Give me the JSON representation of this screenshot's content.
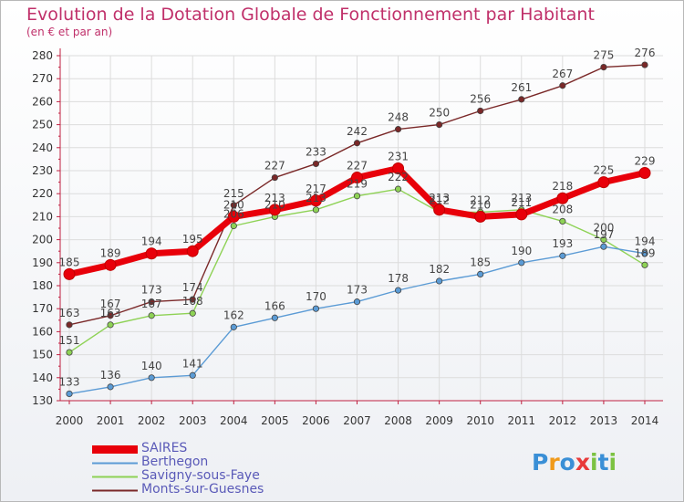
{
  "header": {
    "title": "Evolution de la Dotation Globale de Fonctionnement par Habitant",
    "subtitle": "(en € et par an)"
  },
  "brand": {
    "letters": [
      "P",
      "r",
      "o",
      "x",
      "i",
      "t",
      "i"
    ]
  },
  "chart_data": {
    "type": "line",
    "x": [
      "2000",
      "2001",
      "2002",
      "2003",
      "2004",
      "2005",
      "2006",
      "2007",
      "2008",
      "2009",
      "2010",
      "2011",
      "2012",
      "2013",
      "2014"
    ],
    "ylim": [
      130,
      280
    ],
    "yticks": [
      130,
      140,
      150,
      160,
      170,
      180,
      190,
      200,
      210,
      220,
      230,
      240,
      250,
      260,
      270,
      280
    ],
    "grid": true,
    "legend_position": "bottom-left",
    "series": [
      {
        "name": "SAIRES",
        "color": "#e8000a",
        "values": [
          185,
          189,
          194,
          195,
          210,
          213,
          217,
          227,
          231,
          213,
          210,
          211,
          218,
          225,
          229
        ],
        "labels": [
          "185",
          "189",
          "194",
          "195",
          "210",
          "213",
          "217",
          "227",
          "231",
          "213",
          "210",
          "211",
          "218",
          "225",
          "229"
        ]
      },
      {
        "name": "Berthegon",
        "color": "#5b9bd5",
        "values": [
          133,
          136,
          140,
          141,
          162,
          166,
          170,
          173,
          178,
          182,
          185,
          190,
          193,
          197,
          194
        ],
        "labels": [
          "133",
          "136",
          "140",
          "141",
          "162",
          "166",
          "170",
          "173",
          "178",
          "182",
          "185",
          "190",
          "193",
          "197",
          "194"
        ]
      },
      {
        "name": "Savigny-sous-Faye",
        "color": "#8ed255",
        "values": [
          151,
          163,
          167,
          168,
          206,
          210,
          213,
          219,
          222,
          212,
          212,
          213,
          208,
          200,
          189
        ],
        "labels": [
          "151",
          "163",
          "167",
          "168",
          "206",
          "210",
          "213",
          "219",
          "222",
          "212",
          "212",
          "213",
          "208",
          "200",
          "189"
        ]
      },
      {
        "name": "Monts-sur-Guesnes",
        "color": "#7a2828",
        "values": [
          163,
          167,
          173,
          174,
          215,
          227,
          233,
          242,
          248,
          250,
          256,
          261,
          267,
          275,
          276
        ],
        "labels": [
          "163",
          "167",
          "173",
          "174",
          "215",
          "227",
          "233",
          "242",
          "248",
          "250",
          "256",
          "261",
          "267",
          "275",
          "276"
        ]
      }
    ]
  }
}
